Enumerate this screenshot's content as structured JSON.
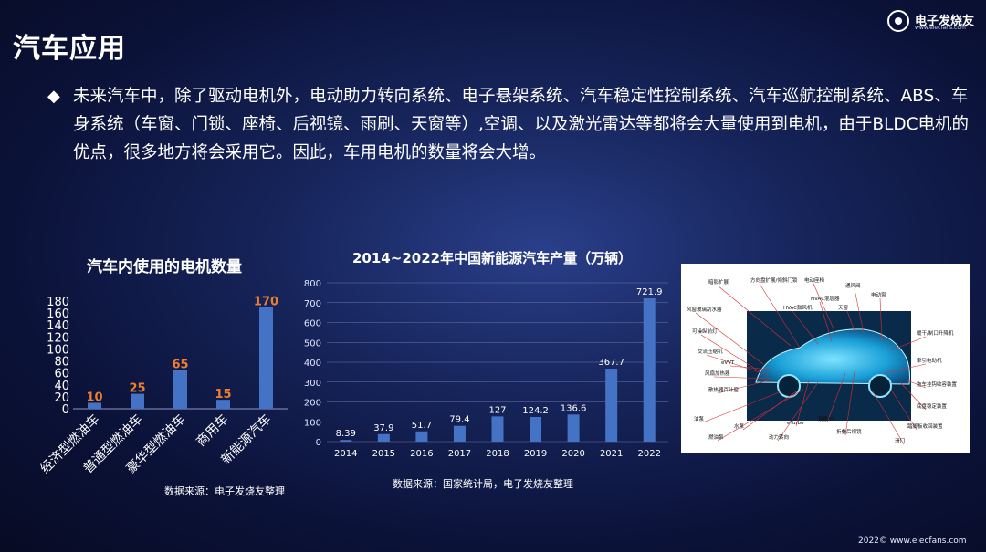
{
  "slide": {
    "title": "汽车应用",
    "bullet_text": "未来汽车中，除了驱动电机外，电动助力转向系统、电子悬架系统、汽车稳定性控制系统、汽车巡航控制系统、ABS、车身系统（车窗、门锁、座椅、后视镜、雨刷、天窗等）,空调、以及激光雷达等都将会大量使用到电机，由于BLDC电机的优点，很多地方将会采用它。因此，车用电机的数量将会大增。",
    "footer": "2022© www.elecfans.com"
  },
  "logo": {
    "name": "电子发烧友",
    "url": "www.elecfans.com"
  },
  "colors": {
    "bar": "#4472c4",
    "label_orange": "#ed7d31",
    "bg": "#0b1238"
  },
  "chart_data": [
    {
      "type": "bar",
      "title": "汽车内使用的电机数量",
      "categories": [
        "经济型燃油车",
        "普通型燃油车",
        "豪华型燃油车",
        "商用车",
        "新能源汽车"
      ],
      "values": [
        10,
        25,
        65,
        15,
        170
      ],
      "data_labels": [
        "10",
        "25",
        "65",
        "15",
        "170"
      ],
      "ylim": [
        0,
        180
      ],
      "yticks": [
        "0",
        "20",
        "40",
        "60",
        "80",
        "100",
        "120",
        "140",
        "160",
        "180"
      ],
      "grid": false,
      "source": "数据来源：电子发烧友整理"
    },
    {
      "type": "bar",
      "title": "2014~2022年中国新能源汽车产量（万辆）",
      "categories": [
        "2014",
        "2015",
        "2016",
        "2017",
        "2018",
        "2019",
        "2020",
        "2021",
        "2022"
      ],
      "values": [
        8.39,
        37.9,
        51.7,
        79.4,
        127,
        124.2,
        136.6,
        367.7,
        721.9
      ],
      "data_labels": [
        "8.39",
        "37.9",
        "51.7",
        "79.4",
        "127",
        "124.2",
        "136.6",
        "367.7",
        "721.9"
      ],
      "ylim": [
        0,
        800
      ],
      "yticks": [
        "0",
        "100",
        "200",
        "300",
        "400",
        "500",
        "600",
        "700",
        "800"
      ],
      "grid": true,
      "source": "数据来源：国家统计局，电子发烧友整理"
    }
  ],
  "car_labels": {
    "items": [
      "暗影扩展",
      "方向盘扩展/倾斜门锁",
      "电动座椅",
      "通风阀",
      "HVAC混层器",
      "HVAC鼓风机",
      "天窗",
      "电动窗",
      "风窗玻璃刮水器",
      "可操纵前灯",
      "交流压缩机",
      "eVVT",
      "风扇加热器",
      "散热器百叶窗",
      "暖干/制口升降机",
      "牵引电动机",
      "拖车挂钩收容装置",
      "底盘稳定装置",
      "油泵",
      "水泵",
      "燃油泵",
      "eTurbo",
      "动力转向",
      "镜像XY",
      "折叠后视镜",
      "踏脚板收回装置",
      "滑门"
    ]
  }
}
